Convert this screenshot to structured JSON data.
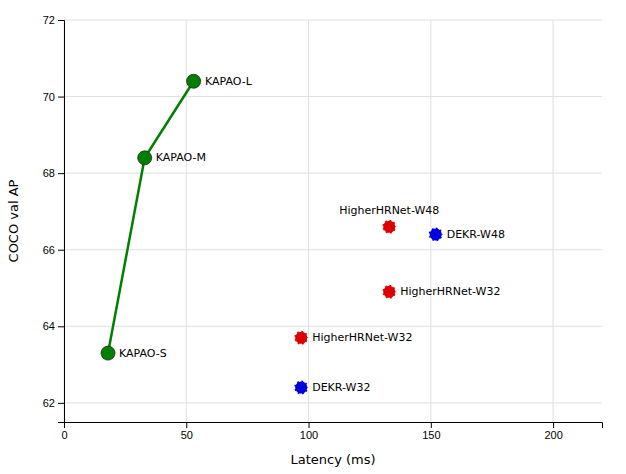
{
  "chart_data": {
    "type": "scatter",
    "xlabel": "Latency (ms)",
    "ylabel": "COCO val AP",
    "xlim": [
      0,
      220
    ],
    "ylim": [
      61.5,
      72
    ],
    "xticks": [
      0,
      50,
      100,
      150,
      200
    ],
    "yticks": [
      62,
      64,
      66,
      68,
      70,
      72
    ],
    "grid": true,
    "series": [
      {
        "type": "line",
        "line_style": "solid",
        "marker": "circle",
        "color": "#008000",
        "x": [
          18,
          33,
          53
        ],
        "values": [
          63.3,
          68.4,
          70.4
        ],
        "annotations": [
          "KAPAO-S",
          "KAPAO-M",
          "KAPAO-L"
        ]
      },
      {
        "type": "scatter",
        "marker": "dashed-circle",
        "colors": [
          "#dd0000",
          "#0000dd",
          "#dd0000",
          "#dd0000",
          "#0000dd"
        ],
        "x": [
          97,
          97,
          133,
          133,
          152
        ],
        "values": [
          63.7,
          62.4,
          64.9,
          66.6,
          66.4
        ],
        "annotations": [
          "HigherHRNet-W32",
          "DEKR-W32",
          "HigherHRNet-W32",
          "HigherHRNet-W48",
          "DEKR-W48"
        ]
      }
    ]
  }
}
